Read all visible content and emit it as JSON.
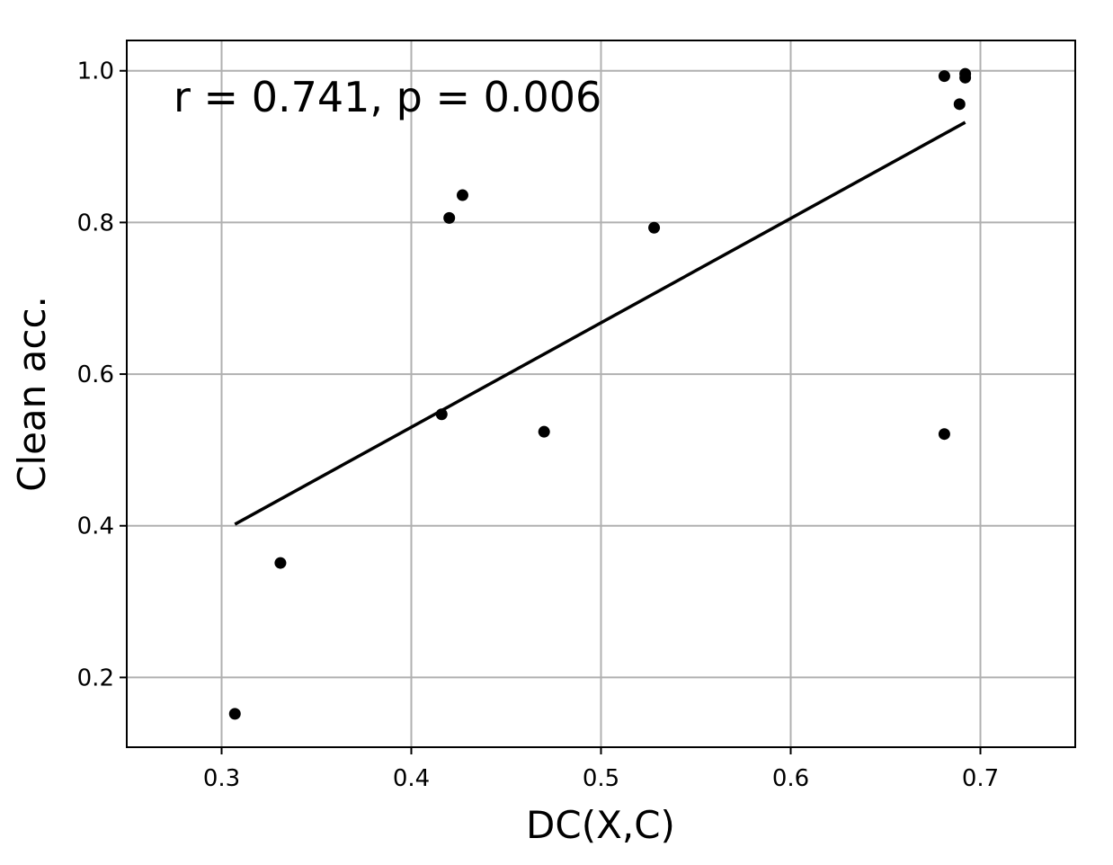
{
  "chart_data": {
    "type": "scatter",
    "title": "",
    "xlabel": "DC(X,C)",
    "ylabel": "Clean acc.",
    "xlim": [
      0.25,
      0.75
    ],
    "ylim": [
      0.108,
      1.04
    ],
    "xticks": [
      0.3,
      0.4,
      0.5,
      0.6,
      0.7
    ],
    "xtick_labels": [
      "0.3",
      "0.4",
      "0.5",
      "0.6",
      "0.7"
    ],
    "yticks": [
      0.2,
      0.4,
      0.6,
      0.8,
      1.0
    ],
    "ytick_labels": [
      "0.2",
      "0.4",
      "0.6",
      "0.8",
      "1.0"
    ],
    "grid": true,
    "annotation": "r = 0.741, p = 0.006",
    "points": [
      {
        "x": 0.307,
        "y": 0.152
      },
      {
        "x": 0.331,
        "y": 0.351
      },
      {
        "x": 0.416,
        "y": 0.547
      },
      {
        "x": 0.42,
        "y": 0.806
      },
      {
        "x": 0.427,
        "y": 0.836
      },
      {
        "x": 0.47,
        "y": 0.524
      },
      {
        "x": 0.528,
        "y": 0.793
      },
      {
        "x": 0.681,
        "y": 0.521
      },
      {
        "x": 0.681,
        "y": 0.993
      },
      {
        "x": 0.689,
        "y": 0.956
      },
      {
        "x": 0.692,
        "y": 0.991
      },
      {
        "x": 0.692,
        "y": 0.996
      }
    ],
    "fit_line": {
      "x": [
        0.307,
        0.692
      ],
      "y": [
        0.402,
        0.932
      ]
    },
    "colors": {
      "points": "#000000",
      "fit_line": "#000000",
      "grid": "#b0b0b0"
    }
  }
}
